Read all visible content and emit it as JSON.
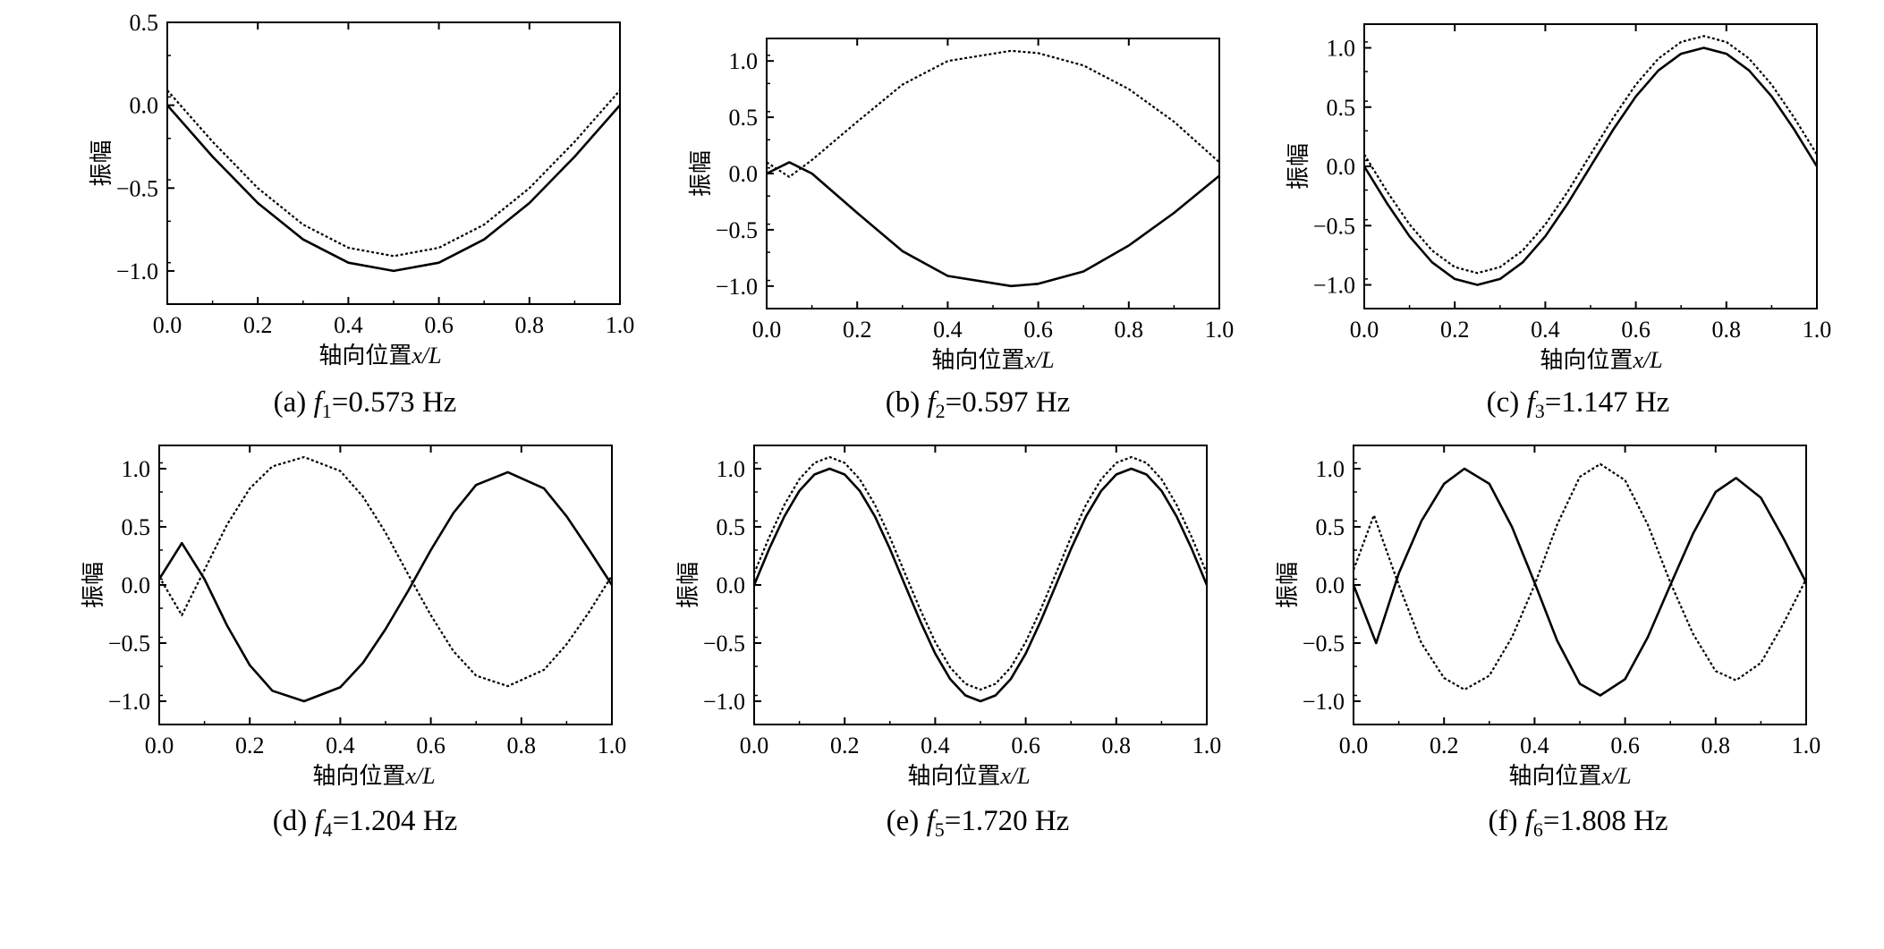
{
  "figure": {
    "panels": [
      {
        "caption_prefix": "(a) ",
        "caption_symbol": "f",
        "caption_subscript": "1",
        "caption_value": "=0.573 Hz",
        "ylabel": "振幅",
        "xlabel_prefix": "轴向位置",
        "xlabel_var": "x/L"
      },
      {
        "caption_prefix": "(b) ",
        "caption_symbol": "f",
        "caption_subscript": "2",
        "caption_value": "=0.597 Hz",
        "ylabel": "振幅",
        "xlabel_prefix": "轴向位置",
        "xlabel_var": "x/L"
      },
      {
        "caption_prefix": "(c) ",
        "caption_symbol": "f",
        "caption_subscript": "3",
        "caption_value": "=1.147 Hz",
        "ylabel": "振幅",
        "xlabel_prefix": "轴向位置",
        "xlabel_var": "x/L"
      },
      {
        "caption_prefix": "(d) ",
        "caption_symbol": "f",
        "caption_subscript": "4",
        "caption_value": "=1.204 Hz",
        "ylabel": "振幅",
        "xlabel_prefix": "轴向位置",
        "xlabel_var": "x/L"
      },
      {
        "caption_prefix": "(e) ",
        "caption_symbol": "f",
        "caption_subscript": "5",
        "caption_value": "=1.720 Hz",
        "ylabel": "振幅",
        "xlabel_prefix": "轴向位置",
        "xlabel_var": "x/L"
      },
      {
        "caption_prefix": "(f) ",
        "caption_symbol": "f",
        "caption_subscript": "6",
        "caption_value": "=1.808 Hz",
        "ylabel": "振幅",
        "xlabel_prefix": "轴向位置",
        "xlabel_var": "x/L"
      }
    ]
  },
  "chart_data": [
    {
      "type": "line",
      "xlim": [
        0,
        1
      ],
      "ylim": [
        -1.2,
        0.5
      ],
      "xticks": [
        "0.0",
        "0.2",
        "0.4",
        "0.6",
        "0.8",
        "1.0"
      ],
      "xtick_values": [
        0,
        0.2,
        0.4,
        0.6,
        0.8,
        1.0
      ],
      "yticks": [
        "0.5",
        "0.0",
        "−0.5",
        "−1.0"
      ],
      "ytick_values": [
        0.5,
        0,
        -0.5,
        -1.0
      ],
      "grid": false,
      "series": [
        {
          "style": "solid",
          "x": [
            0,
            0.1,
            0.2,
            0.3,
            0.4,
            0.5,
            0.6,
            0.7,
            0.8,
            0.9,
            1.0
          ],
          "y": [
            0,
            -0.31,
            -0.59,
            -0.81,
            -0.95,
            -1.0,
            -0.95,
            -0.81,
            -0.59,
            -0.31,
            0
          ]
        },
        {
          "style": "dotted",
          "x": [
            0,
            0.1,
            0.2,
            0.3,
            0.4,
            0.5,
            0.6,
            0.7,
            0.8,
            0.9,
            1.0
          ],
          "y": [
            0.09,
            -0.22,
            -0.5,
            -0.72,
            -0.86,
            -0.91,
            -0.86,
            -0.72,
            -0.5,
            -0.22,
            0.09
          ]
        }
      ]
    },
    {
      "type": "line",
      "xlim": [
        0,
        1
      ],
      "ylim": [
        -1.2,
        1.2
      ],
      "xticks": [
        "0.0",
        "0.2",
        "0.4",
        "0.6",
        "0.8",
        "1.0"
      ],
      "xtick_values": [
        0,
        0.2,
        0.4,
        0.6,
        0.8,
        1.0
      ],
      "yticks": [
        "1.0",
        "0.5",
        "0.0",
        "−0.5",
        "−1.0"
      ],
      "ytick_values": [
        1.0,
        0.5,
        0,
        -0.5,
        -1.0
      ],
      "grid": false,
      "series": [
        {
          "style": "solid",
          "x": [
            0,
            0.05,
            0.1,
            0.2,
            0.3,
            0.4,
            0.54,
            0.6,
            0.7,
            0.8,
            0.9,
            1.0
          ],
          "y": [
            0,
            0.1,
            0.0,
            -0.35,
            -0.69,
            -0.91,
            -1.0,
            -0.98,
            -0.87,
            -0.64,
            -0.35,
            -0.02
          ]
        },
        {
          "style": "dotted",
          "x": [
            0,
            0.05,
            0.1,
            0.2,
            0.3,
            0.4,
            0.54,
            0.6,
            0.7,
            0.8,
            0.9,
            1.0
          ],
          "y": [
            0.1,
            -0.03,
            0.12,
            0.46,
            0.79,
            1.0,
            1.09,
            1.07,
            0.96,
            0.75,
            0.46,
            0.1
          ]
        }
      ]
    },
    {
      "type": "line",
      "xlim": [
        0,
        1
      ],
      "ylim": [
        -1.2,
        1.2
      ],
      "xticks": [
        "0.0",
        "0.2",
        "0.4",
        "0.6",
        "0.8",
        "1.0"
      ],
      "xtick_values": [
        0,
        0.2,
        0.4,
        0.6,
        0.8,
        1.0
      ],
      "yticks": [
        "1.0",
        "0.5",
        "0.0",
        "−0.5",
        "−1.0"
      ],
      "ytick_values": [
        1.0,
        0.5,
        0,
        -0.5,
        -1.0
      ],
      "grid": false,
      "series": [
        {
          "style": "solid",
          "x": [
            0,
            0.05,
            0.1,
            0.15,
            0.2,
            0.25,
            0.3,
            0.35,
            0.4,
            0.45,
            0.5,
            0.55,
            0.6,
            0.65,
            0.7,
            0.75,
            0.8,
            0.85,
            0.9,
            0.95,
            1.0
          ],
          "y": [
            0,
            -0.31,
            -0.59,
            -0.81,
            -0.95,
            -1.0,
            -0.95,
            -0.81,
            -0.59,
            -0.31,
            0,
            0.31,
            0.59,
            0.81,
            0.95,
            1.0,
            0.95,
            0.81,
            0.59,
            0.31,
            0
          ]
        },
        {
          "style": "dotted",
          "x": [
            0,
            0.05,
            0.1,
            0.15,
            0.2,
            0.25,
            0.3,
            0.35,
            0.4,
            0.45,
            0.5,
            0.55,
            0.6,
            0.65,
            0.7,
            0.75,
            0.8,
            0.85,
            0.9,
            0.95,
            1.0
          ],
          "y": [
            0.1,
            -0.21,
            -0.49,
            -0.71,
            -0.85,
            -0.9,
            -0.85,
            -0.71,
            -0.49,
            -0.21,
            0.1,
            0.41,
            0.69,
            0.91,
            1.05,
            1.1,
            1.05,
            0.91,
            0.69,
            0.41,
            0.1
          ]
        }
      ]
    },
    {
      "type": "line",
      "xlim": [
        0,
        1
      ],
      "ylim": [
        -1.2,
        1.2
      ],
      "xticks": [
        "0.0",
        "0.2",
        "0.4",
        "0.6",
        "0.8",
        "1.0"
      ],
      "xtick_values": [
        0,
        0.2,
        0.4,
        0.6,
        0.8,
        1.0
      ],
      "yticks": [
        "1.0",
        "0.5",
        "0.0",
        "−0.5",
        "−1.0"
      ],
      "ytick_values": [
        1.0,
        0.5,
        0,
        -0.5,
        -1.0
      ],
      "grid": false,
      "series": [
        {
          "style": "solid",
          "x": [
            0,
            0.05,
            0.1,
            0.15,
            0.2,
            0.25,
            0.32,
            0.4,
            0.45,
            0.5,
            0.55,
            0.6,
            0.65,
            0.7,
            0.77,
            0.85,
            0.9,
            0.95,
            1.0
          ],
          "y": [
            0.05,
            0.36,
            0.05,
            -0.35,
            -0.69,
            -0.91,
            -1.0,
            -0.88,
            -0.67,
            -0.38,
            -0.05,
            0.3,
            0.62,
            0.86,
            0.97,
            0.83,
            0.59,
            0.3,
            0.0
          ]
        },
        {
          "style": "dotted",
          "x": [
            0,
            0.05,
            0.1,
            0.15,
            0.2,
            0.25,
            0.32,
            0.4,
            0.45,
            0.5,
            0.55,
            0.6,
            0.65,
            0.7,
            0.77,
            0.85,
            0.9,
            0.95,
            1.0
          ],
          "y": [
            0.07,
            -0.26,
            0.13,
            0.52,
            0.83,
            1.02,
            1.1,
            0.98,
            0.76,
            0.45,
            0.09,
            -0.26,
            -0.57,
            -0.78,
            -0.87,
            -0.73,
            -0.51,
            -0.23,
            0.08
          ]
        }
      ]
    },
    {
      "type": "line",
      "xlim": [
        0,
        1
      ],
      "ylim": [
        -1.2,
        1.2
      ],
      "xticks": [
        "0.0",
        "0.2",
        "0.4",
        "0.6",
        "0.8",
        "1.0"
      ],
      "xtick_values": [
        0,
        0.2,
        0.4,
        0.6,
        0.8,
        1.0
      ],
      "yticks": [
        "1.0",
        "0.5",
        "0.0",
        "−0.5",
        "−1.0"
      ],
      "ytick_values": [
        1.0,
        0.5,
        0,
        -0.5,
        -1.0
      ],
      "grid": false,
      "series": [
        {
          "style": "solid",
          "x": [
            0,
            0.0333,
            0.0667,
            0.1,
            0.1333,
            0.1667,
            0.2,
            0.2333,
            0.2667,
            0.3,
            0.3333,
            0.3667,
            0.4,
            0.4333,
            0.4667,
            0.5,
            0.5333,
            0.5667,
            0.6,
            0.6333,
            0.6667,
            0.7,
            0.7333,
            0.7667,
            0.8,
            0.8333,
            0.8667,
            0.9,
            0.9333,
            0.9667,
            1.0
          ],
          "y": [
            0,
            0.31,
            0.59,
            0.81,
            0.95,
            1.0,
            0.95,
            0.81,
            0.59,
            0.31,
            0,
            -0.31,
            -0.59,
            -0.81,
            -0.95,
            -1.0,
            -0.95,
            -0.81,
            -0.59,
            -0.31,
            0,
            0.31,
            0.59,
            0.81,
            0.95,
            1.0,
            0.95,
            0.81,
            0.59,
            0.31,
            0
          ]
        },
        {
          "style": "dotted",
          "x": [
            0,
            0.0333,
            0.0667,
            0.1,
            0.1333,
            0.1667,
            0.2,
            0.2333,
            0.2667,
            0.3,
            0.3333,
            0.3667,
            0.4,
            0.4333,
            0.4667,
            0.5,
            0.5333,
            0.5667,
            0.6,
            0.6333,
            0.6667,
            0.7,
            0.7333,
            0.7667,
            0.8,
            0.8333,
            0.8667,
            0.9,
            0.9333,
            0.9667,
            1.0
          ],
          "y": [
            0.1,
            0.41,
            0.69,
            0.91,
            1.05,
            1.1,
            1.05,
            0.91,
            0.69,
            0.41,
            0.1,
            -0.21,
            -0.49,
            -0.71,
            -0.85,
            -0.9,
            -0.85,
            -0.71,
            -0.49,
            -0.21,
            0.1,
            0.41,
            0.69,
            0.91,
            1.05,
            1.1,
            1.05,
            0.91,
            0.69,
            0.41,
            0.1
          ]
        }
      ]
    },
    {
      "type": "line",
      "xlim": [
        0,
        1
      ],
      "ylim": [
        -1.2,
        1.2
      ],
      "xticks": [
        "0.0",
        "0.2",
        "0.4",
        "0.6",
        "0.8",
        "1.0"
      ],
      "xtick_values": [
        0,
        0.2,
        0.4,
        0.6,
        0.8,
        1.0
      ],
      "yticks": [
        "1.0",
        "0.5",
        "0.0",
        "−0.5",
        "−1.0"
      ],
      "ytick_values": [
        1.0,
        0.5,
        0,
        -0.5,
        -1.0
      ],
      "grid": false,
      "series": [
        {
          "style": "solid",
          "x": [
            0,
            0.05,
            0.1,
            0.15,
            0.2,
            0.245,
            0.3,
            0.35,
            0.4,
            0.45,
            0.5,
            0.545,
            0.6,
            0.65,
            0.7,
            0.75,
            0.8,
            0.845,
            0.9,
            0.95,
            1.0
          ],
          "y": [
            0,
            -0.5,
            0.1,
            0.55,
            0.87,
            1.0,
            0.87,
            0.5,
            0.02,
            -0.48,
            -0.85,
            -0.95,
            -0.81,
            -0.45,
            0.0,
            0.44,
            0.8,
            0.92,
            0.75,
            0.4,
            0.02
          ]
        },
        {
          "style": "dotted",
          "x": [
            0,
            0.045,
            0.1,
            0.15,
            0.2,
            0.245,
            0.3,
            0.35,
            0.4,
            0.45,
            0.5,
            0.545,
            0.6,
            0.65,
            0.7,
            0.75,
            0.8,
            0.845,
            0.9,
            0.95,
            1.0
          ],
          "y": [
            0.13,
            0.6,
            0.0,
            -0.5,
            -0.8,
            -0.9,
            -0.78,
            -0.45,
            0.0,
            0.52,
            0.93,
            1.04,
            0.9,
            0.52,
            0.02,
            -0.42,
            -0.74,
            -0.82,
            -0.67,
            -0.33,
            0.05
          ]
        }
      ]
    }
  ]
}
